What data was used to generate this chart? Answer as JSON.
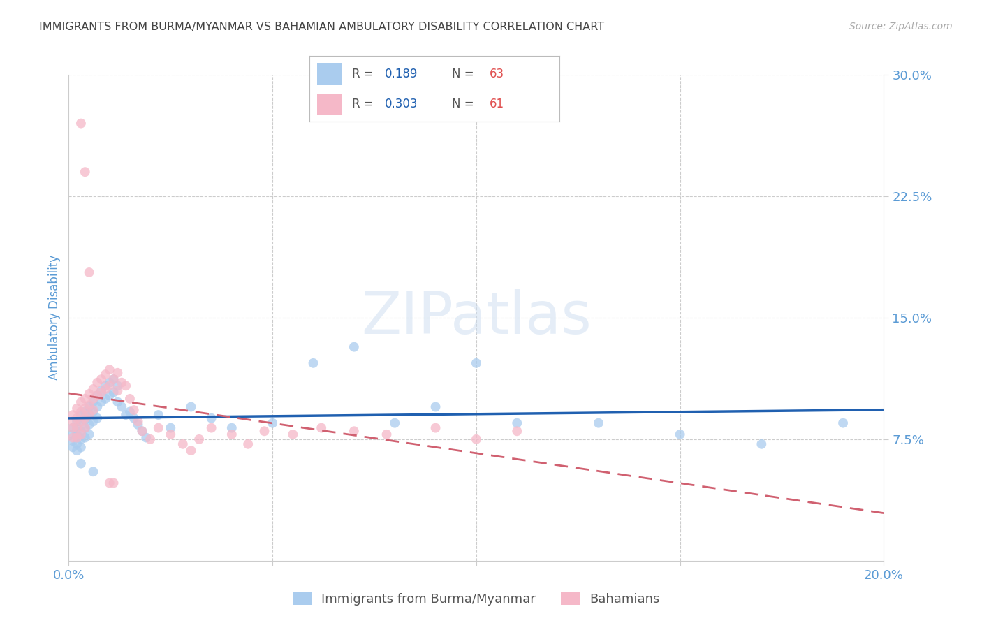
{
  "title": "IMMIGRANTS FROM BURMA/MYANMAR VS BAHAMIAN AMBULATORY DISABILITY CORRELATION CHART",
  "source": "Source: ZipAtlas.com",
  "ylabel": "Ambulatory Disability",
  "series1_label": "Immigrants from Burma/Myanmar",
  "series2_label": "Bahamians",
  "series1_color": "#aaccee",
  "series2_color": "#f5b8c8",
  "series1_line_color": "#2060b0",
  "series2_line_color": "#d06070",
  "xlim": [
    0.0,
    0.2
  ],
  "ylim": [
    0.0,
    0.3
  ],
  "yticks": [
    0.075,
    0.15,
    0.225,
    0.3
  ],
  "ytick_labels": [
    "7.5%",
    "15.0%",
    "22.5%",
    "30.0%"
  ],
  "xticks": [
    0.0,
    0.05,
    0.1,
    0.15,
    0.2
  ],
  "xtick_labels": [
    "0.0%",
    "",
    "",
    "",
    "20.0%"
  ],
  "watermark": "ZIPatlas",
  "background_color": "#ffffff",
  "grid_color": "#cccccc",
  "title_color": "#444444",
  "tick_color": "#5b9bd5",
  "series1_R": "0.189",
  "series1_N": "63",
  "series2_R": "0.303",
  "series2_N": "61",
  "legend_value_color": "#2060b0",
  "legend_n_color": "#e05050",
  "series1_x": [
    0.001,
    0.001,
    0.001,
    0.001,
    0.002,
    0.002,
    0.002,
    0.002,
    0.002,
    0.003,
    0.003,
    0.003,
    0.003,
    0.003,
    0.004,
    0.004,
    0.004,
    0.004,
    0.005,
    0.005,
    0.005,
    0.005,
    0.006,
    0.006,
    0.006,
    0.007,
    0.007,
    0.007,
    0.008,
    0.008,
    0.009,
    0.009,
    0.01,
    0.01,
    0.011,
    0.011,
    0.012,
    0.012,
    0.013,
    0.014,
    0.015,
    0.016,
    0.017,
    0.018,
    0.019,
    0.022,
    0.025,
    0.03,
    0.035,
    0.04,
    0.05,
    0.06,
    0.07,
    0.08,
    0.09,
    0.1,
    0.11,
    0.13,
    0.15,
    0.17,
    0.19,
    0.003,
    0.006
  ],
  "series1_y": [
    0.082,
    0.078,
    0.074,
    0.07,
    0.086,
    0.082,
    0.078,
    0.072,
    0.068,
    0.09,
    0.086,
    0.08,
    0.075,
    0.07,
    0.092,
    0.087,
    0.082,
    0.076,
    0.095,
    0.09,
    0.084,
    0.078,
    0.098,
    0.092,
    0.086,
    0.102,
    0.095,
    0.088,
    0.105,
    0.098,
    0.108,
    0.1,
    0.11,
    0.102,
    0.112,
    0.104,
    0.108,
    0.098,
    0.095,
    0.09,
    0.092,
    0.088,
    0.084,
    0.08,
    0.076,
    0.09,
    0.082,
    0.095,
    0.088,
    0.082,
    0.085,
    0.122,
    0.132,
    0.085,
    0.095,
    0.122,
    0.085,
    0.085,
    0.078,
    0.072,
    0.085,
    0.06,
    0.055
  ],
  "series2_x": [
    0.001,
    0.001,
    0.001,
    0.001,
    0.002,
    0.002,
    0.002,
    0.002,
    0.003,
    0.003,
    0.003,
    0.003,
    0.004,
    0.004,
    0.004,
    0.004,
    0.005,
    0.005,
    0.005,
    0.006,
    0.006,
    0.006,
    0.007,
    0.007,
    0.008,
    0.008,
    0.009,
    0.009,
    0.01,
    0.01,
    0.011,
    0.012,
    0.012,
    0.013,
    0.014,
    0.015,
    0.016,
    0.017,
    0.018,
    0.02,
    0.022,
    0.025,
    0.028,
    0.03,
    0.032,
    0.035,
    0.04,
    0.044,
    0.048,
    0.055,
    0.062,
    0.07,
    0.078,
    0.09,
    0.1,
    0.11,
    0.003,
    0.004,
    0.005,
    0.01,
    0.011
  ],
  "series2_y": [
    0.09,
    0.086,
    0.082,
    0.076,
    0.094,
    0.088,
    0.082,
    0.076,
    0.098,
    0.092,
    0.086,
    0.078,
    0.1,
    0.094,
    0.088,
    0.082,
    0.103,
    0.096,
    0.09,
    0.106,
    0.1,
    0.093,
    0.11,
    0.102,
    0.112,
    0.104,
    0.115,
    0.106,
    0.118,
    0.108,
    0.112,
    0.116,
    0.105,
    0.11,
    0.108,
    0.1,
    0.093,
    0.086,
    0.08,
    0.075,
    0.082,
    0.078,
    0.072,
    0.068,
    0.075,
    0.082,
    0.078,
    0.072,
    0.08,
    0.078,
    0.082,
    0.08,
    0.078,
    0.082,
    0.075,
    0.08,
    0.27,
    0.24,
    0.178,
    0.048,
    0.048
  ]
}
